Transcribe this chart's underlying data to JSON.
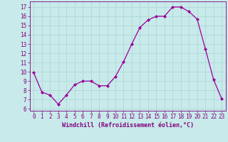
{
  "x": [
    0,
    1,
    2,
    3,
    4,
    5,
    6,
    7,
    8,
    9,
    10,
    11,
    12,
    13,
    14,
    15,
    16,
    17,
    18,
    19,
    20,
    21,
    22,
    23
  ],
  "y": [
    9.9,
    7.8,
    7.5,
    6.5,
    7.5,
    8.6,
    9.0,
    9.0,
    8.5,
    8.5,
    9.5,
    11.1,
    13.0,
    14.8,
    15.6,
    16.0,
    16.0,
    17.0,
    17.0,
    16.5,
    15.7,
    12.5,
    9.2,
    7.1
  ],
  "line_color": "#990099",
  "marker": "D",
  "marker_size": 2.0,
  "bg_color": "#c8eaea",
  "grid_color": "#b0d8d8",
  "xlabel": "Windchill (Refroidissement éolien,°C)",
  "tick_fontsize": 5.5,
  "xlabel_fontsize": 6.0,
  "ylim": [
    5.8,
    17.6
  ],
  "xlim": [
    -0.5,
    23.5
  ],
  "yticks": [
    6,
    7,
    8,
    9,
    10,
    11,
    12,
    13,
    14,
    15,
    16,
    17
  ],
  "xticks": [
    0,
    1,
    2,
    3,
    4,
    5,
    6,
    7,
    8,
    9,
    10,
    11,
    12,
    13,
    14,
    15,
    16,
    17,
    18,
    19,
    20,
    21,
    22,
    23
  ],
  "label_color": "#800080",
  "spine_color": "#800080",
  "linewidth": 0.9
}
